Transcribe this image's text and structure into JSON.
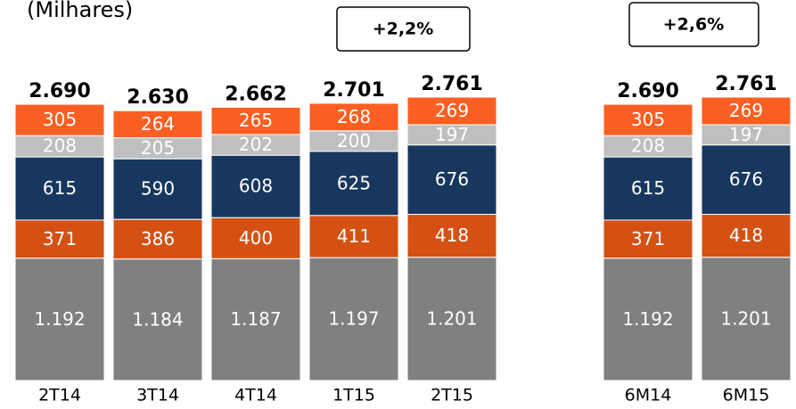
{
  "chart_data": {
    "type": "stacked-bar",
    "title": "(Milhares)",
    "categories": [
      "2T14",
      "3T14",
      "4T14",
      "1T15",
      "2T15",
      "6M14",
      "6M15"
    ],
    "series": [
      {
        "color": "#808080",
        "values": [
          1192,
          1184,
          1187,
          1197,
          1201,
          1192,
          1201
        ],
        "value_labels": [
          "1.192",
          "1.184",
          "1.187",
          "1.197",
          "1.201",
          "1.192",
          "1.201"
        ]
      },
      {
        "color": "#d45113",
        "values": [
          371,
          386,
          400,
          411,
          418,
          371,
          418
        ]
      },
      {
        "color": "#17375e",
        "values": [
          615,
          590,
          608,
          625,
          676,
          615,
          676
        ]
      },
      {
        "color": "#bfbfbf",
        "values": [
          208,
          205,
          202,
          200,
          197,
          208,
          197
        ]
      },
      {
        "color": "#fc5f22",
        "values": [
          305,
          264,
          265,
          268,
          269,
          305,
          269
        ]
      }
    ],
    "totals": {
      "values": [
        2690,
        2630,
        2662,
        2701,
        2761,
        2690,
        2761
      ],
      "value_labels": [
        "2.690",
        "2.630",
        "2.662",
        "2.701",
        "2.761",
        "2.690",
        "2.761"
      ]
    },
    "annotations": [
      "+2,2%",
      "+2,6%"
    ]
  }
}
